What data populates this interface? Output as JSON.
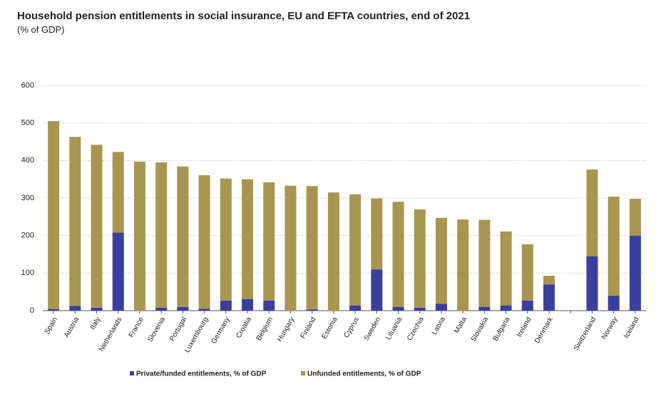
{
  "chart_data": {
    "type": "stacked-bar",
    "title": "Household pension entitlements in social insurance, EU and EFTA countries, end of 2021",
    "subtitle": "(% of GDP)",
    "categories": [
      "Spain",
      "Austria",
      "Italy",
      "Netherlands",
      "France",
      "Slovenia",
      "Portugal",
      "Luxembourg",
      "Germany",
      "Croatia",
      "Belgium",
      "Hungary",
      "Finland",
      "Estonia",
      "Cyprus",
      "Sweden",
      "Lituania",
      "Czechia",
      "Latvia",
      "Malta",
      "Slovakia",
      "Bulgaria",
      "Ireland",
      "Denmark",
      null,
      "Switzerland",
      "Norway",
      "Iceland"
    ],
    "series": [
      {
        "name": "Private/funded entitlements, % of GDP",
        "color": "#3b3f9c",
        "values": [
          4,
          13,
          8,
          208,
          0,
          8,
          10,
          5,
          27,
          31,
          27,
          0,
          3,
          0,
          14,
          110,
          10,
          8,
          18,
          0,
          10,
          14,
          27,
          70,
          null,
          145,
          40,
          200
        ]
      },
      {
        "name": "Unfunded entitlements, % of GDP",
        "color": "#a89650",
        "values": [
          501,
          450,
          434,
          215,
          397,
          387,
          374,
          356,
          325,
          319,
          315,
          333,
          329,
          315,
          296,
          189,
          280,
          262,
          229,
          243,
          232,
          197,
          150,
          23,
          null,
          231,
          264,
          98
        ]
      }
    ],
    "ylim": [
      0,
      600
    ],
    "yticks": [
      0,
      100,
      200,
      300,
      400,
      500,
      600
    ],
    "grid": true,
    "legend": "bottom"
  }
}
